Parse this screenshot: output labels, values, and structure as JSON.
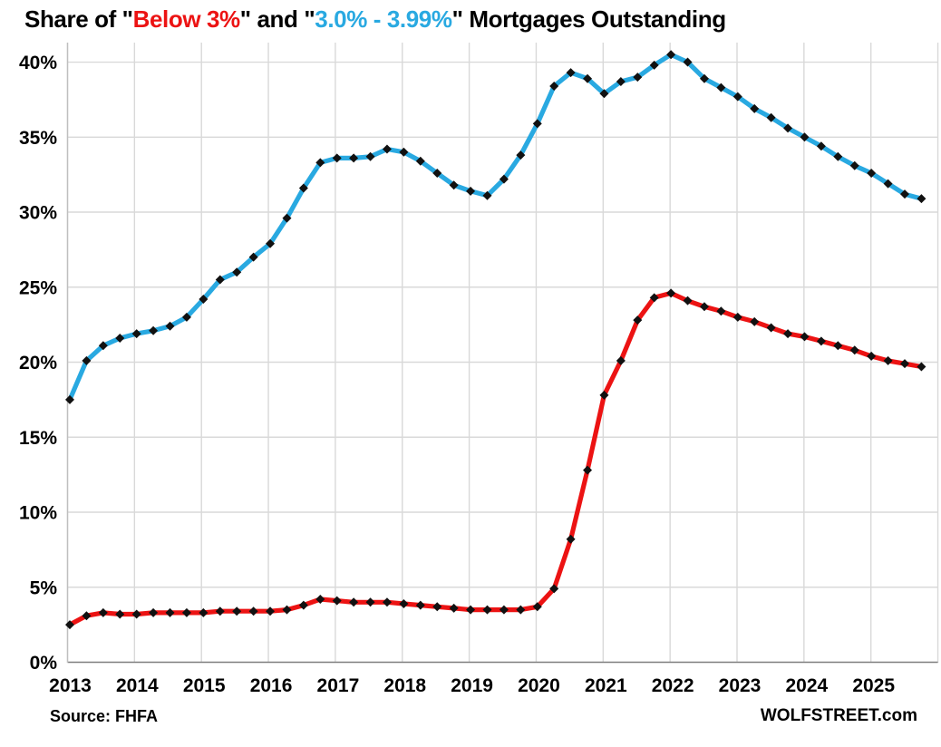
{
  "title": {
    "segments": [
      {
        "text": "Share of \"",
        "color": "#000000"
      },
      {
        "text": "Below 3%",
        "color": "#ec1313"
      },
      {
        "text": "\" and \"",
        "color": "#000000"
      },
      {
        "text": "3.0% - 3.99%",
        "color": "#29a9e1"
      },
      {
        "text": "\" Mortgages Outstanding",
        "color": "#000000"
      }
    ]
  },
  "footer": {
    "source": "Source: FHFA",
    "brand": "WOLFSTREET.com"
  },
  "colors": {
    "below_3_line": "#ec1313",
    "three_to_399_line": "#29a9e1",
    "marker": "#111111",
    "gridline": "#d9d9d9",
    "axis_line": "#bfbfbf",
    "zero_line": "#7f7f7f"
  },
  "chart_data": {
    "type": "line",
    "title": "Share of \"Below 3%\" and \"3.0% - 3.99%\" Mortgages Outstanding",
    "xlabel": "",
    "ylabel": "",
    "grid": true,
    "legend_position": "none (series identified by colored title text)",
    "frequency": "quarterly",
    "x_tick_labels": [
      "2013",
      "2014",
      "2015",
      "2016",
      "2017",
      "2018",
      "2019",
      "2020",
      "2021",
      "2022",
      "2023",
      "2024",
      "2025"
    ],
    "y_ticks": [
      0,
      5,
      10,
      15,
      20,
      25,
      30,
      35,
      40
    ],
    "y_tick_labels": [
      "0%",
      "5%",
      "10%",
      "15%",
      "20%",
      "25%",
      "30%",
      "35%",
      "40%"
    ],
    "ylim": [
      0,
      41.3
    ],
    "quarters": [
      "2013-Q1",
      "2013-Q2",
      "2013-Q3",
      "2013-Q4",
      "2014-Q1",
      "2014-Q2",
      "2014-Q3",
      "2014-Q4",
      "2015-Q1",
      "2015-Q2",
      "2015-Q3",
      "2015-Q4",
      "2016-Q1",
      "2016-Q2",
      "2016-Q3",
      "2016-Q4",
      "2017-Q1",
      "2017-Q2",
      "2017-Q3",
      "2017-Q4",
      "2018-Q1",
      "2018-Q2",
      "2018-Q3",
      "2018-Q4",
      "2019-Q1",
      "2019-Q2",
      "2019-Q3",
      "2019-Q4",
      "2020-Q1",
      "2020-Q2",
      "2020-Q3",
      "2020-Q4",
      "2021-Q1",
      "2021-Q2",
      "2021-Q3",
      "2021-Q4",
      "2022-Q1",
      "2022-Q2",
      "2022-Q3",
      "2022-Q4",
      "2023-Q1",
      "2023-Q2",
      "2023-Q3",
      "2023-Q4",
      "2024-Q1",
      "2024-Q2",
      "2024-Q3",
      "2024-Q4",
      "2025-Q1",
      "2025-Q2",
      "2025-Q3",
      "2025-Q4"
    ],
    "series": [
      {
        "name": "Below 3%",
        "color": "#ec1313",
        "values": [
          2.5,
          3.1,
          3.3,
          3.2,
          3.2,
          3.3,
          3.3,
          3.3,
          3.3,
          3.4,
          3.4,
          3.4,
          3.4,
          3.5,
          3.8,
          4.2,
          4.1,
          4.0,
          4.0,
          4.0,
          3.9,
          3.8,
          3.7,
          3.6,
          3.5,
          3.5,
          3.5,
          3.5,
          3.7,
          4.9,
          8.2,
          12.8,
          17.8,
          20.1,
          22.8,
          24.3,
          24.6,
          24.1,
          23.7,
          23.4,
          23.0,
          22.7,
          22.3,
          21.9,
          21.7,
          21.4,
          21.1,
          20.8,
          20.4,
          20.1,
          19.9,
          19.7
        ]
      },
      {
        "name": "3.0% - 3.99%",
        "color": "#29a9e1",
        "values": [
          17.5,
          20.1,
          21.1,
          21.6,
          21.9,
          22.1,
          22.4,
          23.0,
          24.2,
          25.5,
          26.0,
          27.0,
          27.9,
          29.6,
          31.6,
          33.3,
          33.6,
          33.6,
          33.7,
          34.2,
          34.0,
          33.4,
          32.6,
          31.8,
          31.4,
          31.1,
          32.2,
          33.8,
          35.9,
          38.4,
          39.3,
          38.9,
          37.9,
          38.7,
          39.0,
          39.8,
          40.5,
          40.0,
          38.9,
          38.3,
          37.7,
          36.9,
          36.3,
          35.6,
          35.0,
          34.4,
          33.7,
          33.1,
          32.6,
          31.9,
          31.2,
          30.9
        ]
      }
    ]
  }
}
